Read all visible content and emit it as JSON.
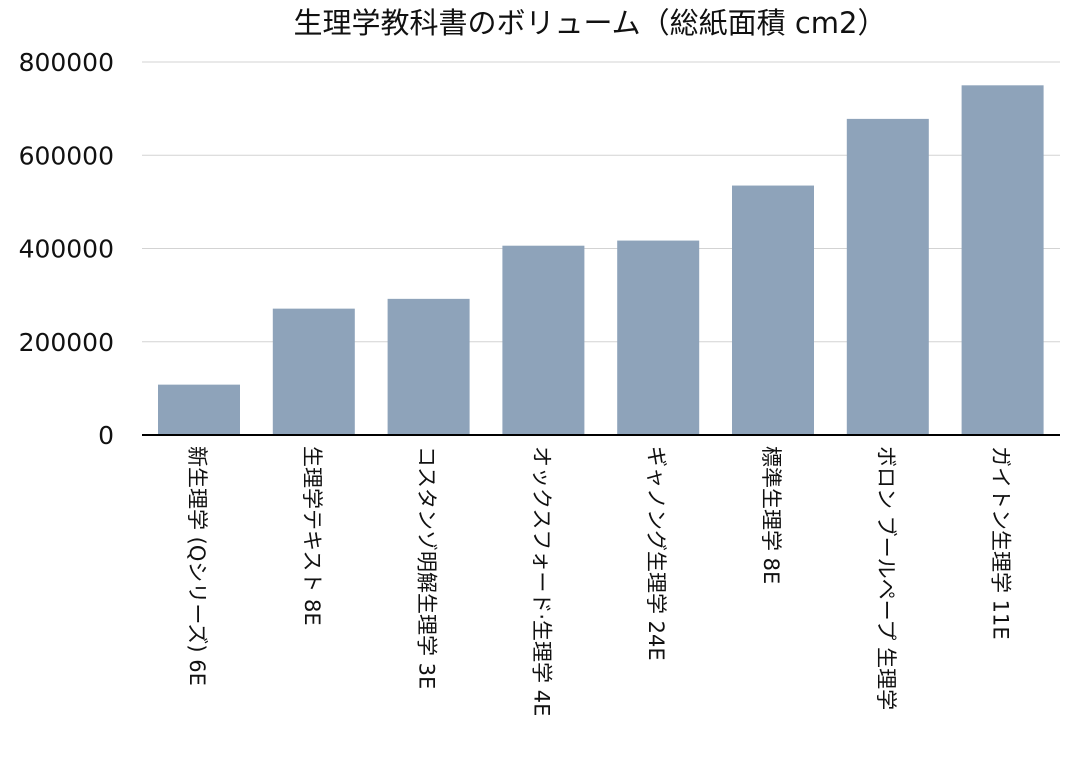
{
  "chart_data": {
    "type": "bar",
    "title": "生理学教科書のボリューム（総紙面積 cm2）",
    "xlabel": "",
    "ylabel": "",
    "categories": [
      "新生理学 (Qシリーズ) 6E",
      "生理学テキスト 8E",
      "コスタンゾ明解生理学 3E",
      "オックスフォード·生理学 4E",
      "ギャノング生理学 24E",
      "標準生理学 8E",
      "ボロン ブールペープ 生理学",
      "ガイトン生理学 11E"
    ],
    "values": [
      108000,
      271000,
      292000,
      406000,
      417000,
      535000,
      678000,
      750000
    ],
    "ylim": [
      0,
      800000
    ],
    "yticks": [
      0,
      200000,
      400000,
      600000,
      800000
    ],
    "grid": true,
    "legend": "none",
    "colors": {
      "bar": "#8ea3ba",
      "grid": "#d3d3d3",
      "axis": "#000000",
      "text": "#111111"
    }
  }
}
